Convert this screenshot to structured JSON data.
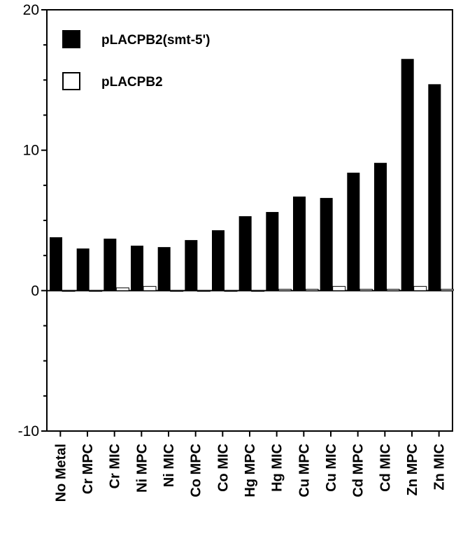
{
  "chart_data": {
    "type": "bar",
    "title": "",
    "xlabel": "",
    "ylabel": "",
    "ylim": [
      -10,
      20
    ],
    "yticks": [
      -10,
      0,
      10,
      20
    ],
    "grid": false,
    "legend_position": "top-left",
    "categories": [
      "No Metal",
      "Cr MPC",
      "Cr MIC",
      "Ni MPC",
      "Ni MIC",
      "Co MPC",
      "Co MIC",
      "Hg MPC",
      "Hg MIC",
      "Cu MPC",
      "Cu MIC",
      "Cd MPC",
      "Cd MIC",
      "Zn MPC",
      "Zn MIC"
    ],
    "series": [
      {
        "name": "pLACPB2(smt-5')",
        "fill": "#000000",
        "values": [
          3.8,
          3.0,
          3.7,
          3.2,
          3.1,
          3.6,
          4.3,
          5.3,
          5.6,
          6.7,
          6.6,
          8.4,
          9.1,
          16.5,
          14.7
        ]
      },
      {
        "name": "pLACPB2",
        "fill": "#ffffff",
        "values": [
          0.0,
          0.0,
          0.2,
          0.3,
          0.0,
          0.0,
          0.0,
          0.0,
          0.1,
          0.1,
          0.3,
          0.1,
          0.1,
          0.3,
          0.1
        ]
      }
    ]
  }
}
